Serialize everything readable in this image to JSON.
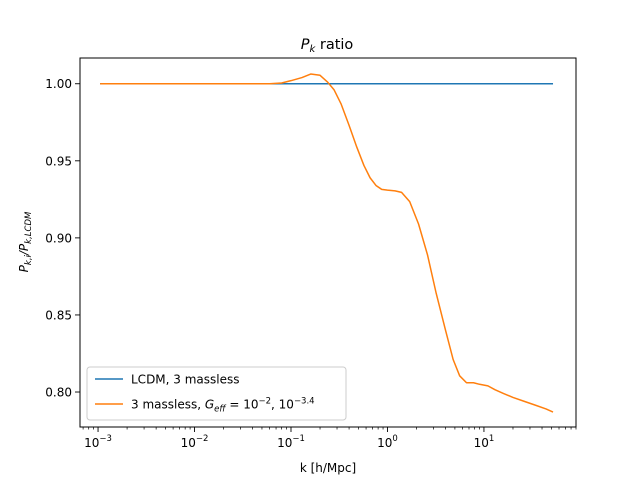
{
  "chart_data": {
    "type": "line",
    "title_main": "P",
    "title_sub": "k",
    "title_rest": " ratio",
    "xlabel": "k [h/Mpc]",
    "ylabel": "P_{k,i}/P_{k,LCDM}",
    "ylabel_parts": {
      "p1": "P",
      "s1": "k,i",
      "mid": "/P",
      "s2": "k,LCDM"
    },
    "x_scale": "log",
    "xlim": [
      0.00065,
      90
    ],
    "ylim": [
      0.7773,
      1.0167
    ],
    "x_ticks": [
      {
        "value": 0.001,
        "base": "10",
        "exp": "−3"
      },
      {
        "value": 0.01,
        "base": "10",
        "exp": "−2"
      },
      {
        "value": 0.1,
        "base": "10",
        "exp": "−1"
      },
      {
        "value": 1,
        "base": "10",
        "exp": "0"
      },
      {
        "value": 10,
        "base": "10",
        "exp": "1"
      }
    ],
    "y_ticks": [
      {
        "value": 0.8,
        "label": "0.80"
      },
      {
        "value": 0.85,
        "label": "0.85"
      },
      {
        "value": 0.9,
        "label": "0.90"
      },
      {
        "value": 0.95,
        "label": "0.95"
      },
      {
        "value": 1.0,
        "label": "1.00"
      }
    ],
    "grid": false,
    "legend_position": "lower-left",
    "series": [
      {
        "name": "LCDM, 3 massless",
        "color": "#1f77b4",
        "x": [
          0.00105,
          52
        ],
        "y": [
          1.0,
          1.0
        ]
      },
      {
        "name": "3 massless, G_eff = 10^-2, 10^-3.4",
        "legend_parts": {
          "pre": "3 massless, ",
          "g": "G",
          "gsub": "eff",
          "eq": " = 10",
          "e1": "−2",
          "comma": ", 10",
          "e2": "−3.4"
        },
        "color": "#ff7f0e",
        "x": [
          0.00105,
          0.003,
          0.01,
          0.03,
          0.06,
          0.08,
          0.1,
          0.13,
          0.16,
          0.2,
          0.24,
          0.28,
          0.33,
          0.4,
          0.48,
          0.57,
          0.66,
          0.76,
          0.87,
          1.0,
          1.2,
          1.4,
          1.7,
          2.1,
          2.6,
          3.2,
          4.0,
          4.8,
          5.6,
          6.6,
          7.8,
          9.0,
          11,
          13,
          16,
          20,
          26,
          34,
          44,
          52
        ],
        "y": [
          1.0,
          1.0,
          1.0,
          1.0,
          1.0,
          1.0005,
          1.002,
          1.004,
          1.0063,
          1.0055,
          1.001,
          0.996,
          0.987,
          0.973,
          0.959,
          0.947,
          0.939,
          0.934,
          0.9315,
          0.931,
          0.9305,
          0.9295,
          0.9235,
          0.909,
          0.889,
          0.864,
          0.84,
          0.821,
          0.8105,
          0.806,
          0.806,
          0.805,
          0.804,
          0.8015,
          0.799,
          0.7965,
          0.794,
          0.7915,
          0.789,
          0.787
        ]
      }
    ]
  }
}
